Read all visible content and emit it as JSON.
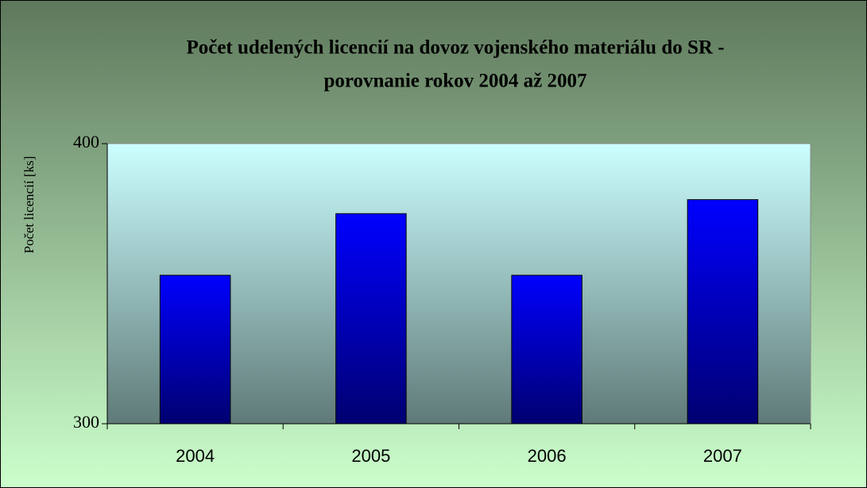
{
  "chart_data": {
    "type": "bar",
    "title": [
      "Počet udelených licencií na dovoz vojenského materiálu do SR -",
      "porovnanie rokov 2004 až 2007"
    ],
    "y_label": "Počet licencií [ks]",
    "categories": [
      "2004",
      "2005",
      "2006",
      "2007"
    ],
    "values": [
      353,
      375,
      353,
      380
    ],
    "color": "#0000ff",
    "ylim": [
      300,
      400
    ],
    "yticks": [
      300,
      400
    ],
    "grid": false
  }
}
